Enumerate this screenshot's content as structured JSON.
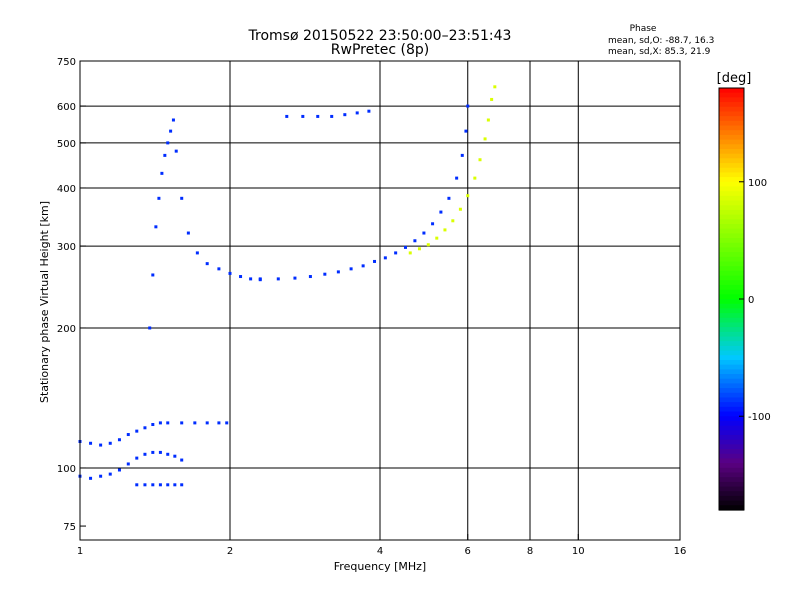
{
  "chart_data": {
    "type": "scatter",
    "title": "Tromsø 20150522 23:50:00–23:51:43",
    "subtitle": "RwPretec (8p)",
    "xlabel": "Frequency [MHz]",
    "ylabel": "Stationary phase Virtual Height [km]",
    "x_scale": "log",
    "y_scale": "log",
    "xlim": [
      1,
      16
    ],
    "ylim": [
      70,
      750
    ],
    "x_ticks": [
      1,
      2,
      4,
      6,
      8,
      10,
      16
    ],
    "y_ticks": [
      75,
      100,
      200,
      300,
      400,
      500,
      600,
      750
    ],
    "x_gridlines": [
      2,
      4,
      6,
      8,
      10
    ],
    "y_gridlines": [
      100,
      200,
      300,
      400,
      500,
      600
    ],
    "phase_stats": {
      "header": "Phase",
      "o_line": "mean, sd,O: -88.7, 16.3",
      "x_line": "mean, sd,X:  85.3, 21.9"
    },
    "colorbar": {
      "label": "[deg]",
      "range": [
        -180,
        180
      ],
      "ticks": [
        "100",
        "0",
        "-100"
      ],
      "tick_values": [
        100,
        0,
        -100
      ]
    },
    "traces": [
      {
        "name": "",
        "phase": -88.7,
        "points": [
          [
            1.0,
            114
          ],
          [
            1.05,
            113
          ],
          [
            1.1,
            112
          ],
          [
            1.15,
            113
          ],
          [
            1.2,
            115
          ],
          [
            1.25,
            118
          ],
          [
            1.3,
            120
          ],
          [
            1.35,
            122
          ],
          [
            1.4,
            124
          ],
          [
            1.45,
            125
          ],
          [
            1.5,
            125
          ],
          [
            1.6,
            125
          ],
          [
            1.7,
            125
          ],
          [
            1.8,
            125
          ],
          [
            1.9,
            125
          ],
          [
            1.97,
            125
          ]
        ]
      },
      {
        "name": "",
        "phase": -88.7,
        "points": [
          [
            1.0,
            96
          ],
          [
            1.05,
            95
          ],
          [
            1.1,
            96
          ],
          [
            1.15,
            97
          ],
          [
            1.2,
            99
          ],
          [
            1.25,
            102
          ],
          [
            1.3,
            105
          ],
          [
            1.35,
            107
          ],
          [
            1.4,
            108
          ],
          [
            1.45,
            108
          ],
          [
            1.5,
            107
          ],
          [
            1.55,
            106
          ],
          [
            1.6,
            104
          ]
        ]
      },
      {
        "name": "",
        "phase": -88.7,
        "points": [
          [
            1.3,
            92
          ],
          [
            1.35,
            92
          ],
          [
            1.4,
            92
          ],
          [
            1.45,
            92
          ],
          [
            1.5,
            92
          ],
          [
            1.55,
            92
          ],
          [
            1.6,
            92
          ]
        ]
      },
      {
        "name": "",
        "phase": -88.7,
        "points": [
          [
            1.38,
            200
          ],
          [
            1.4,
            260
          ],
          [
            1.42,
            330
          ],
          [
            1.44,
            380
          ],
          [
            1.46,
            430
          ],
          [
            1.48,
            470
          ],
          [
            1.5,
            500
          ],
          [
            1.52,
            530
          ],
          [
            1.54,
            560
          ],
          [
            1.56,
            480
          ],
          [
            1.6,
            380
          ],
          [
            1.65,
            320
          ],
          [
            1.72,
            290
          ],
          [
            1.8,
            275
          ],
          [
            1.9,
            268
          ],
          [
            2.0,
            262
          ],
          [
            2.1,
            258
          ],
          [
            2.2,
            255
          ],
          [
            2.3,
            254
          ]
        ]
      },
      {
        "name": "",
        "phase": -88.7,
        "points": [
          [
            2.3,
            255
          ],
          [
            2.5,
            255
          ],
          [
            2.7,
            256
          ],
          [
            2.9,
            258
          ],
          [
            3.1,
            261
          ],
          [
            3.3,
            264
          ],
          [
            3.5,
            268
          ],
          [
            3.7,
            272
          ],
          [
            3.9,
            278
          ],
          [
            4.1,
            283
          ],
          [
            4.3,
            290
          ],
          [
            4.5,
            298
          ],
          [
            4.7,
            308
          ],
          [
            4.9,
            320
          ],
          [
            5.1,
            335
          ],
          [
            5.3,
            355
          ],
          [
            5.5,
            380
          ],
          [
            5.7,
            420
          ],
          [
            5.85,
            470
          ],
          [
            5.95,
            530
          ],
          [
            6.0,
            600
          ]
        ]
      },
      {
        "name": "",
        "phase": 85.3,
        "points": [
          [
            4.6,
            290
          ],
          [
            4.8,
            296
          ],
          [
            5.0,
            302
          ],
          [
            5.2,
            312
          ],
          [
            5.4,
            325
          ],
          [
            5.6,
            340
          ],
          [
            5.8,
            360
          ],
          [
            6.0,
            385
          ],
          [
            6.2,
            420
          ],
          [
            6.35,
            460
          ],
          [
            6.5,
            510
          ],
          [
            6.6,
            560
          ],
          [
            6.7,
            620
          ],
          [
            6.8,
            660
          ]
        ]
      },
      {
        "name": "",
        "phase": -88.7,
        "points": [
          [
            2.6,
            570
          ],
          [
            2.8,
            570
          ],
          [
            3.0,
            570
          ],
          [
            3.2,
            570
          ],
          [
            3.4,
            575
          ],
          [
            3.6,
            580
          ],
          [
            3.8,
            585
          ]
        ]
      }
    ]
  }
}
